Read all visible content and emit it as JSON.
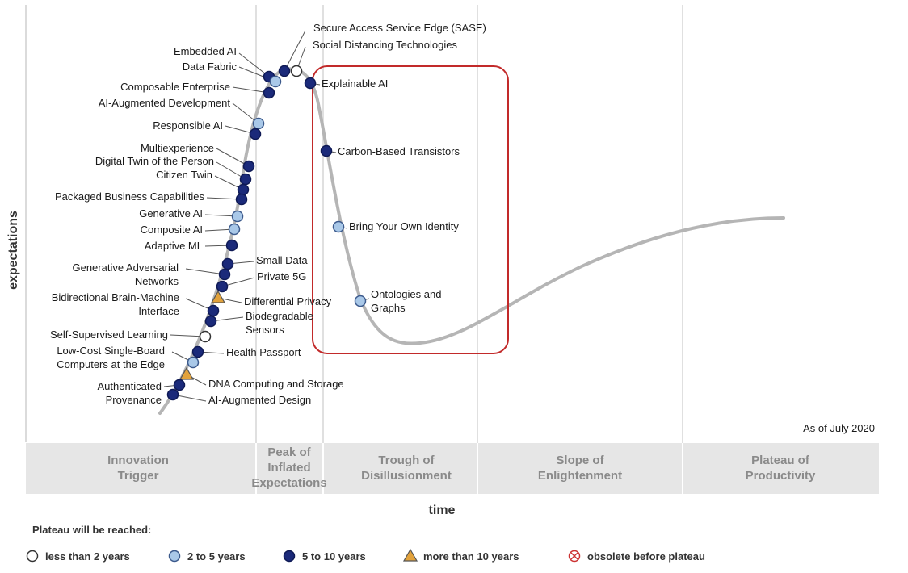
{
  "chart_data": {
    "type": "scatter",
    "title": "",
    "xlabel": "time",
    "ylabel": "expectations",
    "as_of": "As of July 2020",
    "grid": false,
    "phases": [
      {
        "name": "innovation-trigger",
        "lines": [
          "Innovation",
          "Trigger"
        ]
      },
      {
        "name": "peak-of-inflated-expectations",
        "lines": [
          "Peak of",
          "Inflated",
          "Expectations"
        ]
      },
      {
        "name": "trough-of-disillusionment",
        "lines": [
          "Trough of",
          "Disillusionment"
        ]
      },
      {
        "name": "slope-of-enlightenment",
        "lines": [
          "Slope of",
          "Enlightenment"
        ]
      },
      {
        "name": "plateau-of-productivity",
        "lines": [
          "Plateau of",
          "Productivity"
        ]
      }
    ],
    "legend": {
      "title": "Plateau will be reached:",
      "placement": "bottom",
      "items": [
        {
          "key": "lt2",
          "label": "less than 2 years",
          "marker": "circle",
          "fill": "#ffffff"
        },
        {
          "key": "2to5",
          "label": "2 to 5 years",
          "marker": "circle",
          "fill": "#a9c8e8"
        },
        {
          "key": "5to10",
          "label": "5 to 10 years",
          "marker": "circle",
          "fill": "#1b2a7a"
        },
        {
          "key": "gt10",
          "label": "more than 10 years",
          "marker": "triangle",
          "fill": "#e2a23b"
        },
        {
          "key": "obsolete",
          "label": "obsolete before plateau",
          "marker": "crossed-circle",
          "fill": "#ffffff"
        }
      ]
    },
    "points": [
      {
        "label": [
          "Secure Access Service Edge (SASE)"
        ],
        "category": "5to10",
        "side": "right"
      },
      {
        "label": [
          "Social Distancing Technologies"
        ],
        "category": "lt2",
        "side": "right"
      },
      {
        "label": [
          "Embedded AI"
        ],
        "category": "5to10",
        "side": "left"
      },
      {
        "label": [
          "Data Fabric"
        ],
        "category": "2to5",
        "side": "left"
      },
      {
        "label": [
          "Composable Enterprise"
        ],
        "category": "5to10",
        "side": "left"
      },
      {
        "label": [
          "AI-Augmented Development"
        ],
        "category": "2to5",
        "side": "left"
      },
      {
        "label": [
          "Responsible AI"
        ],
        "category": "5to10",
        "side": "left"
      },
      {
        "label": [
          "Multiexperience"
        ],
        "category": "5to10",
        "side": "left"
      },
      {
        "label": [
          "Digital Twin of the Person"
        ],
        "category": "5to10",
        "side": "left"
      },
      {
        "label": [
          "Citizen Twin"
        ],
        "category": "5to10",
        "side": "left"
      },
      {
        "label": [
          "Packaged Business Capabilities"
        ],
        "category": "5to10",
        "side": "left"
      },
      {
        "label": [
          "Generative AI"
        ],
        "category": "2to5",
        "side": "left"
      },
      {
        "label": [
          "Composite AI"
        ],
        "category": "2to5",
        "side": "left"
      },
      {
        "label": [
          "Adaptive ML"
        ],
        "category": "5to10",
        "side": "left"
      },
      {
        "label": [
          "Small Data"
        ],
        "category": "5to10",
        "side": "right"
      },
      {
        "label": [
          "Generative Adversarial",
          "Networks"
        ],
        "category": "5to10",
        "side": "left"
      },
      {
        "label": [
          "Private 5G"
        ],
        "category": "5to10",
        "side": "right"
      },
      {
        "label": [
          "Differential Privacy"
        ],
        "category": "gt10",
        "side": "right"
      },
      {
        "label": [
          "Bidirectional Brain-Machine",
          "Interface"
        ],
        "category": "5to10",
        "side": "left"
      },
      {
        "label": [
          "Biodegradable",
          "Sensors"
        ],
        "category": "5to10",
        "side": "right"
      },
      {
        "label": [
          "Self-Supervised Learning"
        ],
        "category": "lt2",
        "side": "left"
      },
      {
        "label": [
          "Health Passport"
        ],
        "category": "5to10",
        "side": "right"
      },
      {
        "label": [
          "Low-Cost Single-Board",
          "Computers at the Edge"
        ],
        "category": "2to5",
        "side": "left"
      },
      {
        "label": [
          "DNA Computing and Storage"
        ],
        "category": "gt10",
        "side": "right"
      },
      {
        "label": [
          "Authenticated",
          "Provenance"
        ],
        "category": "5to10",
        "side": "left"
      },
      {
        "label": [
          "AI-Augmented Design"
        ],
        "category": "5to10",
        "side": "right"
      },
      {
        "label": [
          "Explainable AI"
        ],
        "category": "5to10",
        "side": "right"
      },
      {
        "label": [
          "Carbon-Based Transistors"
        ],
        "category": "5to10",
        "side": "right"
      },
      {
        "label": [
          "Bring Your Own Identity"
        ],
        "category": "2to5",
        "side": "right"
      },
      {
        "label": [
          "Ontologies and",
          "Graphs"
        ],
        "category": "2to5",
        "side": "right"
      }
    ]
  }
}
